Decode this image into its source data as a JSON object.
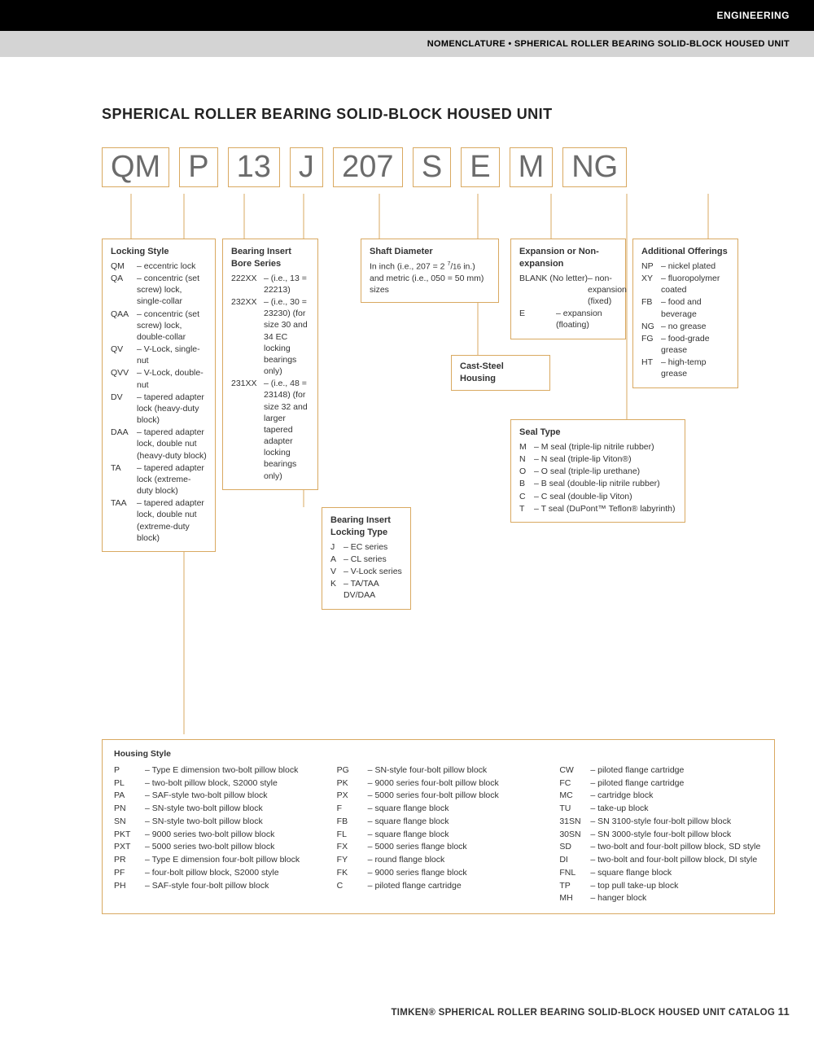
{
  "header": {
    "category": "ENGINEERING",
    "breadcrumb": "NOMENCLATURE • SPHERICAL ROLLER BEARING SOLID-BLOCK HOUSED UNIT"
  },
  "title": "SPHERICAL ROLLER BEARING SOLID-BLOCK HOUSED UNIT",
  "code_parts": [
    "QM",
    "P",
    "13",
    "J",
    "207",
    "S",
    "E",
    "M",
    "NG"
  ],
  "locking_style": {
    "title": "Locking Style",
    "items": [
      {
        "code": "QM",
        "desc": "eccentric lock"
      },
      {
        "code": "QA",
        "desc": "concentric (set screw) lock, single-collar"
      },
      {
        "code": "QAA",
        "desc": "concentric (set screw) lock, double-collar"
      },
      {
        "code": "QV",
        "desc": "V-Lock, single-nut"
      },
      {
        "code": "QVV",
        "desc": "V-Lock, double-nut"
      },
      {
        "code": "DV",
        "desc": "tapered adapter lock (heavy-duty block)"
      },
      {
        "code": "DAA",
        "desc": "tapered adapter lock, double nut (heavy-duty block)"
      },
      {
        "code": "TA",
        "desc": "tapered adapter lock (extreme-duty block)"
      },
      {
        "code": "TAA",
        "desc": "tapered adapter lock, double nut (extreme-duty block)"
      }
    ]
  },
  "bore_series": {
    "title": "Bearing Insert Bore Series",
    "items": [
      {
        "code": "222XX",
        "desc": "(i.e., 13 = 22213)"
      },
      {
        "code": "232XX",
        "desc": "(i.e., 30 = 23230) (for size 30 and 34 EC locking bearings only)"
      },
      {
        "code": "231XX",
        "desc": "(i.e., 48 = 23148) (for size 32 and larger tapered adapter locking bearings only)"
      }
    ]
  },
  "locking_type": {
    "title": "Bearing Insert Locking Type",
    "items": [
      {
        "code": "J",
        "desc": "EC series"
      },
      {
        "code": "A",
        "desc": "CL series"
      },
      {
        "code": "V",
        "desc": "V-Lock series"
      },
      {
        "code": "K",
        "desc": "TA/TAA DV/DAA"
      }
    ]
  },
  "shaft_diameter": {
    "title": "Shaft Diameter",
    "text": "In inch (i.e., 207 = 2 7/16 in.) and metric (i.e., 050 = 50 mm) sizes"
  },
  "cast_steel": "Cast-Steel Housing",
  "expansion": {
    "title": "Expansion or Non-expansion",
    "items": [
      {
        "code": "BLANK (No letter)",
        "desc": "non-expansion (fixed)"
      },
      {
        "code": "E",
        "desc": "expansion (floating)"
      }
    ]
  },
  "seal_type": {
    "title": "Seal Type",
    "items": [
      {
        "code": "M",
        "desc": "M seal (triple-lip nitrile rubber)"
      },
      {
        "code": "N",
        "desc": "N seal (triple-lip Viton®)"
      },
      {
        "code": "O",
        "desc": "O seal (triple-lip urethane)"
      },
      {
        "code": "B",
        "desc": "B seal (double-lip nitrile rubber)"
      },
      {
        "code": "C",
        "desc": "C seal (double-lip Viton)"
      },
      {
        "code": "T",
        "desc": "T seal (DuPont™ Teflon® labyrinth)"
      }
    ]
  },
  "additional": {
    "title": "Additional Offerings",
    "items": [
      {
        "code": "NP",
        "desc": "nickel plated"
      },
      {
        "code": "XY",
        "desc": "fluoropolymer coated"
      },
      {
        "code": "FB",
        "desc": "food and beverage"
      },
      {
        "code": "NG",
        "desc": "no grease"
      },
      {
        "code": "FG",
        "desc": "food-grade grease"
      },
      {
        "code": "HT",
        "desc": "high-temp grease"
      }
    ]
  },
  "housing": {
    "title": "Housing Style",
    "col1": [
      {
        "code": "P",
        "desc": "Type E dimension two-bolt pillow block"
      },
      {
        "code": "PL",
        "desc": "two-bolt pillow block, S2000 style"
      },
      {
        "code": "PA",
        "desc": "SAF-style two-bolt pillow block"
      },
      {
        "code": "PN",
        "desc": "SN-style two-bolt pillow block"
      },
      {
        "code": "SN",
        "desc": "SN-style two-bolt pillow block"
      },
      {
        "code": "PKT",
        "desc": "9000 series two-bolt pillow block"
      },
      {
        "code": "PXT",
        "desc": "5000 series two-bolt pillow block"
      },
      {
        "code": "PR",
        "desc": "Type E dimension four-bolt pillow block"
      },
      {
        "code": "PF",
        "desc": "four-bolt pillow block, S2000 style"
      },
      {
        "code": "PH",
        "desc": "SAF-style four-bolt pillow block"
      }
    ],
    "col2": [
      {
        "code": "PG",
        "desc": "SN-style four-bolt pillow block"
      },
      {
        "code": "PK",
        "desc": "9000 series four-bolt pillow block"
      },
      {
        "code": "PX",
        "desc": "5000 series four-bolt pillow block"
      },
      {
        "code": "F",
        "desc": "square flange block"
      },
      {
        "code": "FB",
        "desc": "square flange block"
      },
      {
        "code": "FL",
        "desc": "square flange block"
      },
      {
        "code": "FX",
        "desc": "5000 series flange block"
      },
      {
        "code": "FY",
        "desc": "round flange block"
      },
      {
        "code": "FK",
        "desc": "9000 series flange block"
      },
      {
        "code": "C",
        "desc": "piloted flange cartridge"
      }
    ],
    "col3": [
      {
        "code": "CW",
        "desc": "piloted flange cartridge"
      },
      {
        "code": "FC",
        "desc": "piloted flange cartridge"
      },
      {
        "code": "MC",
        "desc": "cartridge block"
      },
      {
        "code": "TU",
        "desc": "take-up block"
      },
      {
        "code": "31SN",
        "desc": "SN 3100-style four-bolt pillow block"
      },
      {
        "code": "30SN",
        "desc": "SN 3000-style four-bolt pillow block"
      },
      {
        "code": "SD",
        "desc": "two-bolt and four-bolt pillow block, SD style"
      },
      {
        "code": "DI",
        "desc": "two-bolt and four-bolt pillow block, DI style"
      },
      {
        "code": "FNL",
        "desc": "square flange block"
      },
      {
        "code": "TP",
        "desc": "top pull take-up block"
      },
      {
        "code": "MH",
        "desc": "hanger block"
      }
    ]
  },
  "footer": {
    "text": "TIMKEN® SPHERICAL ROLLER BEARING SOLID-BLOCK HOUSED UNIT CATALOG",
    "page": "11"
  },
  "colors": {
    "border": "#d9a961",
    "code_text": "#6b6b6b",
    "black": "#000000",
    "gray": "#d4d4d4"
  }
}
